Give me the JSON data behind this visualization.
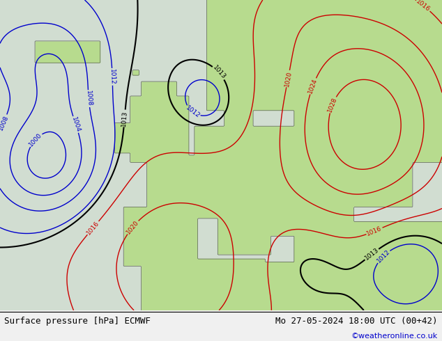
{
  "title_left": "Surface pressure [hPa] ECMWF",
  "title_right": "Mo 27-05-2024 18:00 UTC (00+42)",
  "copyright": "©weatheronline.co.uk",
  "bg_color": "#c8c8c8",
  "land_color_green": "#b8d896",
  "sea_color": "#dce8dc",
  "contour_black": "#000000",
  "contour_red": "#cc0000",
  "contour_blue": "#0000cc",
  "label_fontsize": 6.5,
  "footer_fontsize": 9,
  "figsize": [
    6.34,
    4.9
  ],
  "dpi": 100
}
